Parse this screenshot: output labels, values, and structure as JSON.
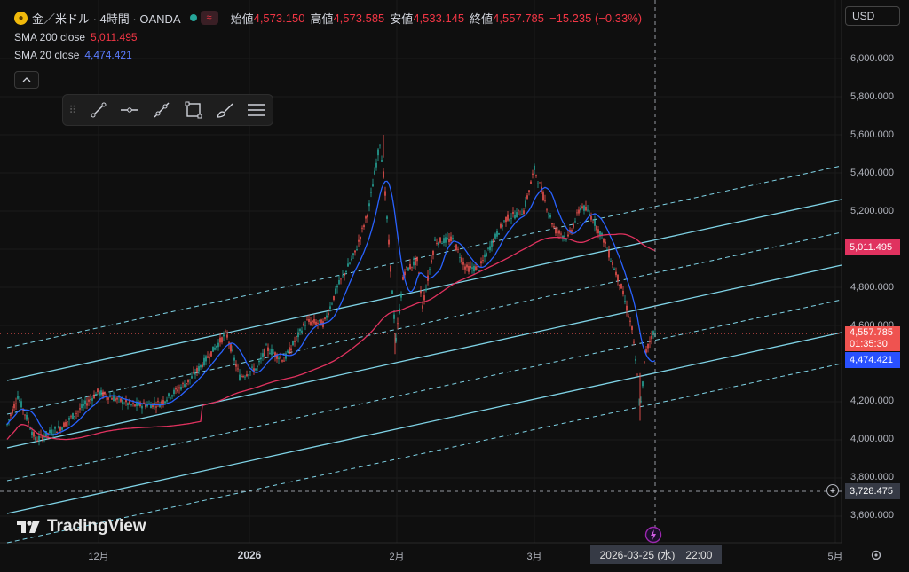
{
  "header": {
    "symbol": "金／米ドル · 4時間 · OANDA",
    "open_label": "始値",
    "open": "4,573.150",
    "high_label": "高値",
    "high": "4,573.585",
    "low_label": "安値",
    "low": "4,533.145",
    "close_label": "終値",
    "close": "4,557.785",
    "change": "−15.235 (−0.33%)",
    "status_icon": "market-open-dot",
    "wave_icon": "≈"
  },
  "indicators": [
    {
      "name": "SMA 200 close",
      "value": "5,011.495",
      "color": "#f23645"
    },
    {
      "name": "SMA 20 close",
      "value": "4,474.421",
      "color": "#2962ff"
    }
  ],
  "toolbar": {
    "tools": [
      "trend-line-icon",
      "horizontal-ray-icon",
      "ray-icon",
      "rectangle-icon",
      "brush-icon",
      "text-lines-icon"
    ]
  },
  "currency": "USD",
  "y_axis": {
    "ticks": [
      "6,000.000",
      "5,800.000",
      "5,600.000",
      "5,400.000",
      "5,200.000",
      "4,800.000",
      "4,600.000",
      "4,200.000",
      "4,000.000",
      "3,800.000",
      "3,600.000"
    ]
  },
  "x_axis": {
    "ticks": [
      "12月",
      "2026",
      "2月",
      "3月",
      "5月"
    ]
  },
  "price_tags": {
    "sma200": "5,011.495",
    "last_price": "4,557.785",
    "countdown": "01:35:30",
    "sma20": "4,474.421",
    "crosshair_price": "3,728.475"
  },
  "crosshair_date": "2026-03-25 (水)　22:00",
  "branding": "TradingView",
  "colors": {
    "up": "#26a69a",
    "down": "#ef5350",
    "sma200": "#e0325f",
    "sma20": "#2962ff",
    "channel": "#7fd3e6",
    "background": "#0f0f0f"
  }
}
